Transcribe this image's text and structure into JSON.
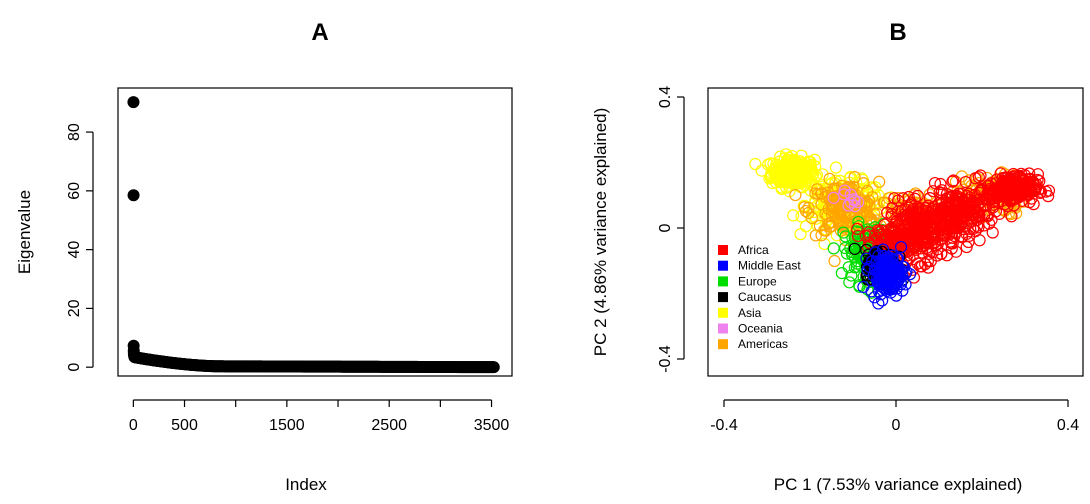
{
  "chart_data": [
    {
      "type": "scatter",
      "title": "A",
      "xlabel": "Index",
      "ylabel": "Eigenvalue",
      "xlim": [
        -150,
        3700
      ],
      "ylim": [
        -3,
        95
      ],
      "x_ticks": [
        0,
        500,
        1500,
        2500,
        3500
      ],
      "y_ticks": [
        0,
        20,
        40,
        60,
        80
      ],
      "points": [
        {
          "x": 1,
          "y": 90.2
        },
        {
          "x": 2,
          "y": 58.5
        },
        {
          "x": 3,
          "y": 7.3
        },
        {
          "x": 4,
          "y": 5.6
        },
        {
          "x": 5,
          "y": 4.8
        },
        {
          "x": 6,
          "y": 4.3
        },
        {
          "x": 8,
          "y": 3.9
        },
        {
          "x": 10,
          "y": 3.6
        }
      ],
      "tail": {
        "x_start": 12,
        "x_end": 3530,
        "y_start": 3.4,
        "y_knee_x": 850,
        "y_knee": 0.3,
        "y_end": 0.0
      },
      "grid": false
    },
    {
      "type": "scatter",
      "title": "B",
      "xlabel": "PC 1 (7.53% variance explained)",
      "ylabel": "PC 2 (4.86% variance explained)",
      "xlim": [
        -0.4,
        0.4
      ],
      "ylim": [
        -0.4,
        0.4
      ],
      "x_ticks": [
        "-0.4",
        "0",
        "0.4"
      ],
      "y_ticks": [
        "-0.4",
        "0",
        "0.4"
      ],
      "legend": {
        "position": "bottom-left",
        "entries": [
          {
            "label": "Africa",
            "color": "#ff0000"
          },
          {
            "label": "Middle East",
            "color": "#0000ff"
          },
          {
            "label": "Europe",
            "color": "#00dd00"
          },
          {
            "label": "Caucasus",
            "color": "#000000"
          },
          {
            "label": "Asia",
            "color": "#ffff00"
          },
          {
            "label": "Oceania",
            "color": "#ee82ee"
          },
          {
            "label": "Americas",
            "color": "#ffa500"
          }
        ]
      },
      "clusters": [
        {
          "group": "Asia",
          "color": "#ffff00",
          "cx": -0.24,
          "cy": 0.17,
          "sx": 0.025,
          "sy": 0.022,
          "n": 260
        },
        {
          "group": "Asia",
          "color": "#ffff00",
          "cx": -0.12,
          "cy": 0.07,
          "sx": 0.045,
          "sy": 0.035,
          "n": 200
        },
        {
          "group": "Americas",
          "color": "#ffa500",
          "cx": -0.12,
          "cy": 0.06,
          "sx": 0.04,
          "sy": 0.04,
          "n": 160
        },
        {
          "group": "Americas",
          "color": "#ffa500",
          "cx": 0.05,
          "cy": 0.04,
          "sx": 0.05,
          "sy": 0.035,
          "n": 120
        },
        {
          "group": "Americas",
          "color": "#ffa500",
          "cx": 0.22,
          "cy": 0.1,
          "sx": 0.04,
          "sy": 0.03,
          "n": 120
        },
        {
          "group": "Oceania",
          "color": "#ee82ee",
          "cx": -0.1,
          "cy": 0.09,
          "sx": 0.02,
          "sy": 0.015,
          "n": 10
        },
        {
          "group": "Europe",
          "color": "#00dd00",
          "cx": -0.07,
          "cy": -0.08,
          "sx": 0.025,
          "sy": 0.045,
          "n": 120
        },
        {
          "group": "Africa",
          "color": "#ff0000",
          "cx": 0.06,
          "cy": -0.01,
          "sx": 0.04,
          "sy": 0.045,
          "n": 260
        },
        {
          "group": "Africa",
          "color": "#ff0000",
          "cx": 0.15,
          "cy": 0.05,
          "sx": 0.04,
          "sy": 0.035,
          "n": 200
        },
        {
          "group": "Africa",
          "color": "#ff0000",
          "cx": 0.27,
          "cy": 0.12,
          "sx": 0.03,
          "sy": 0.022,
          "n": 220
        },
        {
          "group": "Africa",
          "color": "#ff0000",
          "cx": -0.01,
          "cy": -0.04,
          "sx": 0.03,
          "sy": 0.03,
          "n": 80
        },
        {
          "group": "Caucasus",
          "color": "#000000",
          "cx": -0.035,
          "cy": -0.11,
          "sx": 0.018,
          "sy": 0.022,
          "n": 120
        },
        {
          "group": "Middle East",
          "color": "#0000ff",
          "cx": -0.02,
          "cy": -0.14,
          "sx": 0.02,
          "sy": 0.03,
          "n": 150
        }
      ],
      "grid": false
    }
  ]
}
